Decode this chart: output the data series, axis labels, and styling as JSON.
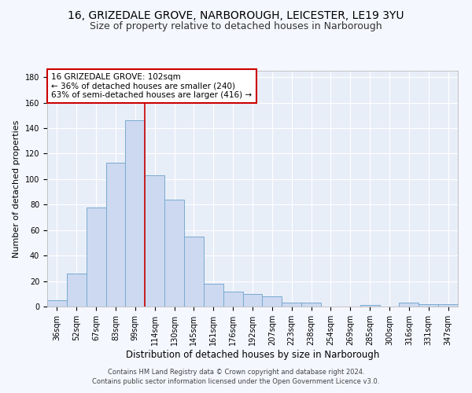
{
  "title1": "16, GRIZEDALE GROVE, NARBOROUGH, LEICESTER, LE19 3YU",
  "title2": "Size of property relative to detached houses in Narborough",
  "xlabel": "Distribution of detached houses by size in Narborough",
  "ylabel": "Number of detached properties",
  "categories": [
    "36sqm",
    "52sqm",
    "67sqm",
    "83sqm",
    "99sqm",
    "114sqm",
    "130sqm",
    "145sqm",
    "161sqm",
    "176sqm",
    "192sqm",
    "207sqm",
    "223sqm",
    "238sqm",
    "254sqm",
    "269sqm",
    "285sqm",
    "300sqm",
    "316sqm",
    "331sqm",
    "347sqm"
  ],
  "values": [
    5,
    26,
    78,
    113,
    146,
    103,
    84,
    55,
    18,
    12,
    10,
    8,
    3,
    3,
    0,
    0,
    1,
    0,
    3,
    2,
    2
  ],
  "bar_color": "#ccd9f0",
  "bar_edge_color": "#7aaad0",
  "vline_x_index": 4,
  "vline_color": "#cc0000",
  "annotation_text": "16 GRIZEDALE GROVE: 102sqm\n← 36% of detached houses are smaller (240)\n63% of semi-detached houses are larger (416) →",
  "annotation_box_color": "#ffffff",
  "annotation_box_edge": "#cc0000",
  "ylim": [
    0,
    185
  ],
  "yticks": [
    0,
    20,
    40,
    60,
    80,
    100,
    120,
    140,
    160,
    180
  ],
  "footer1": "Contains HM Land Registry data © Crown copyright and database right 2024.",
  "footer2": "Contains public sector information licensed under the Open Government Licence v3.0.",
  "bg_color": "#e8eef8",
  "grid_color": "#ffffff",
  "title1_fontsize": 10,
  "title2_fontsize": 9,
  "tick_fontsize": 7,
  "xlabel_fontsize": 8.5,
  "ylabel_fontsize": 8,
  "annotation_fontsize": 7.5,
  "footer_fontsize": 6
}
